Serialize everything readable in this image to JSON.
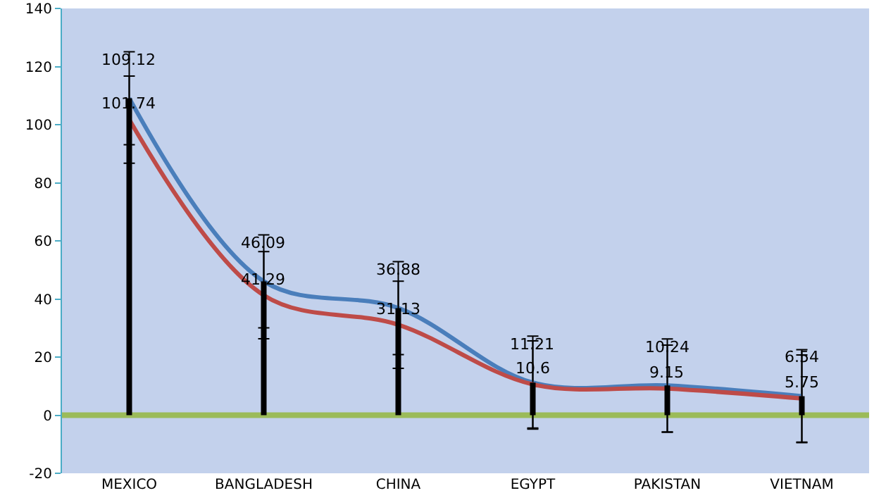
{
  "chart_data": {
    "type": "line",
    "categories": [
      "MEXICO",
      "BANGLADESH",
      "CHINA",
      "EGYPT",
      "PAKISTAN",
      "VIETNAM"
    ],
    "series": [
      {
        "color": "#4a7ebb",
        "values": [
          109.12,
          46.09,
          36.88,
          11.21,
          10.24,
          6.54
        ],
        "errors": [
          16,
          16,
          16,
          16,
          16,
          16
        ]
      },
      {
        "color": "#be4b48",
        "values": [
          101.74,
          41.29,
          31.13,
          10.6,
          9.15,
          5.75
        ],
        "errors": [
          15,
          15,
          15,
          15,
          15,
          15
        ]
      }
    ],
    "ref_lines": [
      {
        "axis": "y",
        "value": 0,
        "color": "#9bbb59"
      }
    ],
    "ylim": [
      -20,
      140
    ],
    "yticks": [
      -20,
      0,
      20,
      40,
      60,
      80,
      100,
      120,
      140
    ],
    "grid": false,
    "marker": "none",
    "line_style": "solid",
    "data_labels": true
  }
}
